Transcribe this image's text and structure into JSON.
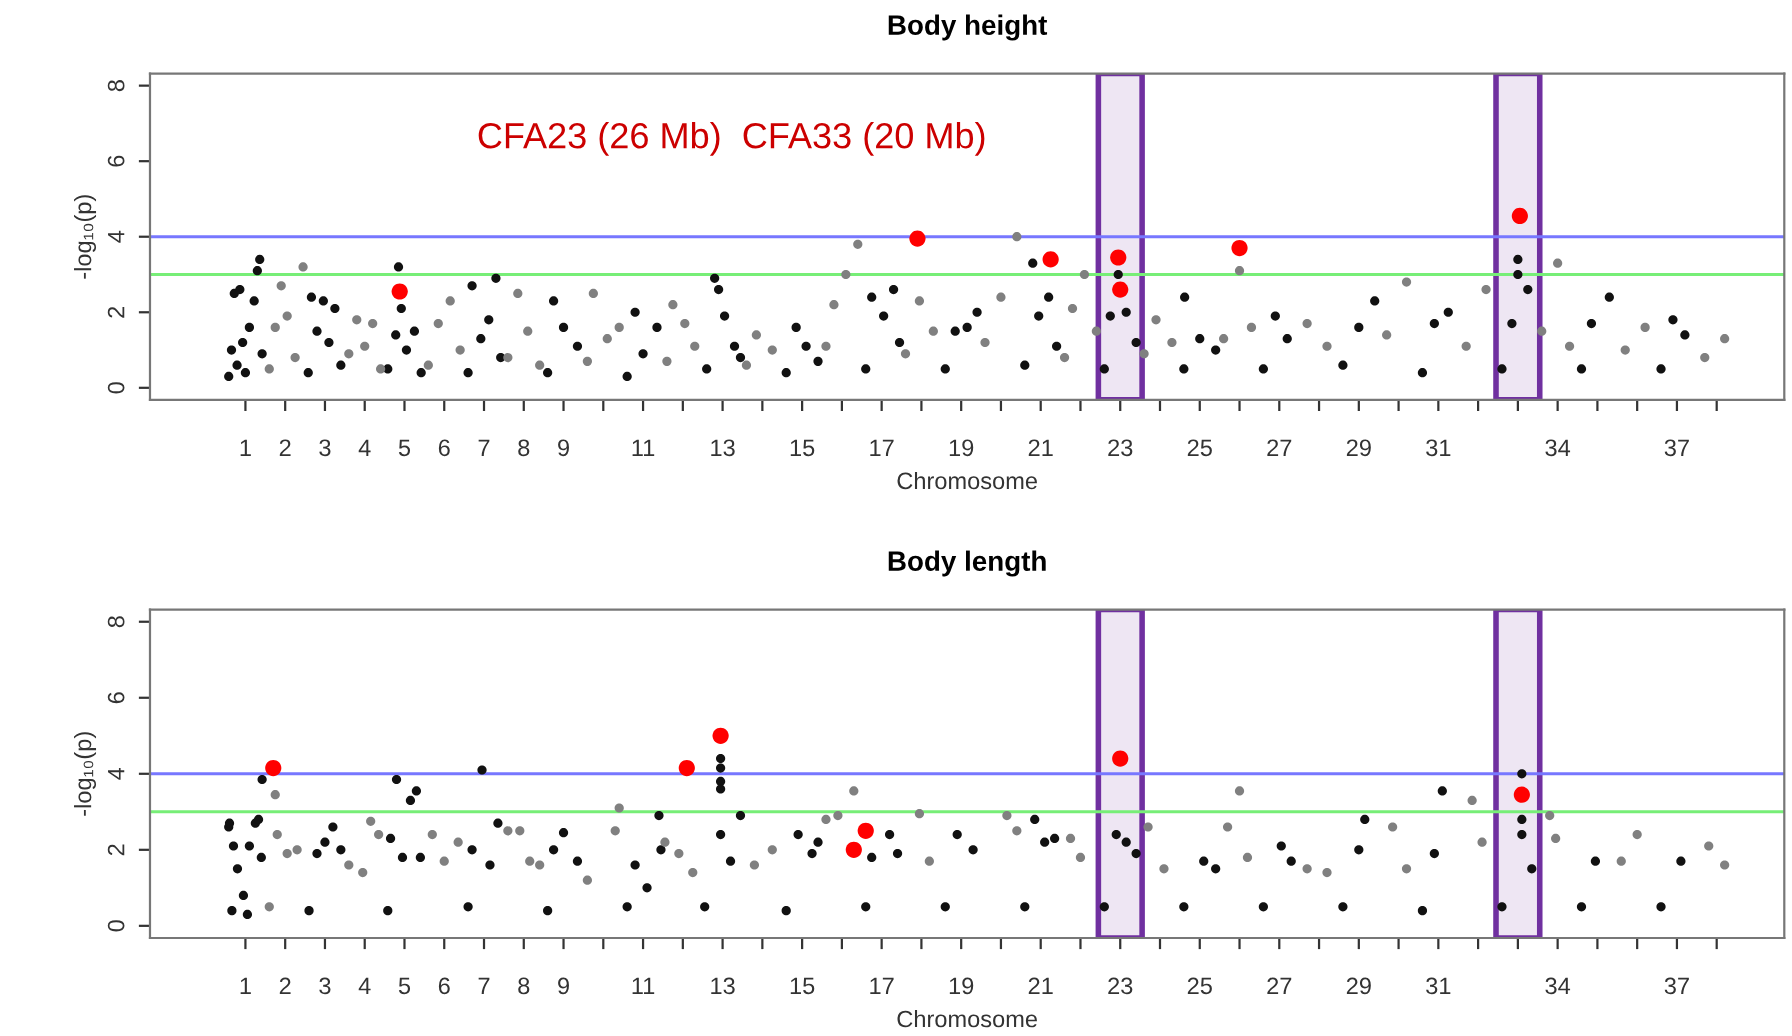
{
  "chart_data": [
    {
      "type": "scatter",
      "title": "Body height",
      "xlabel": "Chromosome",
      "ylabel": "-log₁₀(p)",
      "marker": "circle",
      "annotations": [
        "CFA23 (26 Mb)  CFA33 (20 Mb)"
      ],
      "xlim": [
        -1.4,
        39.7
      ],
      "ylim": [
        -0.32,
        8.32
      ],
      "yticks": [
        0,
        2,
        4,
        6,
        8
      ],
      "xticks": [
        1,
        2,
        3,
        4,
        5,
        6,
        7,
        8,
        9,
        {
          "value": 10,
          "label": null
        },
        11,
        {
          "value": 12,
          "label": null
        },
        13,
        {
          "value": 14,
          "label": null
        },
        15,
        {
          "value": 16,
          "label": null
        },
        17,
        {
          "value": 18,
          "label": null
        },
        19,
        {
          "value": 20,
          "label": null
        },
        21,
        {
          "value": 22,
          "label": null
        },
        23,
        {
          "value": 24,
          "label": null
        },
        25,
        {
          "value": 26,
          "label": null
        },
        27,
        {
          "value": 28,
          "label": null
        },
        29,
        {
          "value": 30,
          "label": null
        },
        31,
        {
          "value": 32,
          "label": null
        },
        {
          "value": 33,
          "label": null
        },
        34,
        {
          "value": 35,
          "label": null
        },
        {
          "value": 36,
          "label": null
        },
        37,
        {
          "value": 38,
          "label": null
        }
      ],
      "ref_lines": [
        {
          "axis": "y",
          "value": 4,
          "label": null,
          "color": "#7777ff"
        },
        {
          "axis": "y",
          "value": 3,
          "label": null,
          "color": "#77ee77"
        }
      ],
      "bands": [
        {
          "axis": "x",
          "from": 22.45,
          "to": 23.55,
          "label": null,
          "color": "#7030a0"
        },
        {
          "axis": "x",
          "from": 32.45,
          "to": 33.55,
          "label": null,
          "color": "#7030a0"
        }
      ],
      "series": [
        {
          "color": "#111111",
          "x": [
            0.58,
            0.65,
            0.72,
            0.79,
            0.86,
            0.93,
            1.0,
            1.1,
            1.22,
            1.3,
            1.36,
            1.42,
            2.58,
            2.66,
            2.8,
            2.96,
            3.1,
            3.25,
            3.4,
            4.58,
            4.78,
            4.85,
            4.92,
            5.05,
            5.25,
            5.42,
            6.6,
            6.7,
            6.92,
            7.12,
            7.3,
            7.42,
            8.6,
            8.75,
            9.0,
            9.35,
            10.6,
            10.8,
            11.0,
            11.35,
            12.6,
            12.8,
            12.9,
            13.05,
            13.3,
            13.45,
            14.6,
            14.85,
            15.1,
            15.4,
            16.6,
            16.75,
            17.05,
            17.3,
            17.45,
            18.6,
            18.85,
            19.15,
            19.4,
            20.6,
            20.8,
            20.95,
            21.2,
            21.4,
            22.6,
            22.75,
            22.95,
            23.15,
            23.4,
            24.6,
            24.62,
            25.0,
            25.4,
            26.6,
            26.9,
            27.2,
            28.6,
            29.0,
            29.4,
            30.6,
            30.9,
            31.25,
            32.6,
            32.85,
            33.0,
            33.0,
            33.25,
            34.6,
            34.85,
            35.3,
            36.6,
            36.9,
            37.2
          ],
          "values": [
            0.3,
            1.0,
            2.5,
            0.6,
            2.6,
            1.2,
            0.4,
            1.6,
            2.3,
            3.1,
            3.4,
            0.9,
            0.4,
            2.4,
            1.5,
            2.3,
            1.2,
            2.1,
            0.6,
            0.5,
            1.4,
            3.2,
            2.1,
            1.0,
            1.5,
            0.4,
            0.4,
            2.7,
            1.3,
            1.8,
            2.9,
            0.8,
            0.4,
            2.3,
            1.6,
            1.1,
            0.3,
            2.0,
            0.9,
            1.6,
            0.5,
            2.9,
            2.6,
            1.9,
            1.1,
            0.8,
            0.4,
            1.6,
            1.1,
            0.7,
            0.5,
            2.4,
            1.9,
            2.6,
            1.2,
            0.5,
            1.5,
            1.6,
            2.0,
            0.6,
            3.3,
            1.9,
            2.4,
            1.1,
            0.5,
            1.9,
            3.0,
            2.0,
            1.2,
            0.5,
            2.4,
            1.3,
            1.0,
            0.5,
            1.9,
            1.3,
            0.6,
            1.6,
            2.3,
            0.4,
            1.7,
            2.0,
            0.5,
            1.7,
            3.0,
            3.4,
            2.6,
            0.5,
            1.7,
            2.4,
            0.5,
            1.8,
            1.4
          ]
        },
        {
          "color": "#808080",
          "x": [
            1.6,
            1.75,
            1.9,
            2.05,
            2.25,
            2.45,
            3.6,
            3.8,
            4.0,
            4.2,
            4.4,
            5.6,
            5.85,
            6.15,
            6.4,
            7.6,
            7.85,
            8.1,
            8.4,
            9.6,
            9.75,
            10.1,
            10.4,
            11.6,
            11.75,
            12.05,
            12.3,
            13.6,
            13.85,
            14.25,
            15.6,
            15.8,
            16.1,
            16.4,
            17.6,
            17.95,
            18.3,
            19.6,
            20.0,
            20.4,
            21.6,
            21.8,
            22.1,
            22.4,
            23.6,
            23.9,
            24.3,
            25.6,
            26.0,
            26.3,
            27.7,
            28.2,
            29.7,
            30.2,
            31.7,
            32.2,
            33.6,
            34.0,
            34.3,
            35.7,
            36.2,
            37.7,
            38.2
          ],
          "values": [
            0.5,
            1.6,
            2.7,
            1.9,
            0.8,
            3.2,
            0.9,
            1.8,
            1.1,
            1.7,
            0.5,
            0.6,
            1.7,
            2.3,
            1.0,
            0.8,
            2.5,
            1.5,
            0.6,
            0.7,
            2.5,
            1.3,
            1.6,
            0.7,
            2.2,
            1.7,
            1.1,
            0.6,
            1.4,
            1.0,
            1.1,
            2.2,
            3.0,
            3.8,
            0.9,
            2.3,
            1.5,
            1.2,
            2.4,
            4.0,
            0.8,
            2.1,
            3.0,
            1.5,
            0.9,
            1.8,
            1.2,
            1.3,
            3.1,
            1.6,
            1.7,
            1.1,
            1.4,
            2.8,
            1.1,
            2.6,
            1.5,
            3.3,
            1.1,
            1.0,
            1.6,
            0.8,
            1.3
          ]
        },
        {
          "color": "#ff0000",
          "x": [
            4.88,
            17.9,
            21.25,
            22.95,
            23.0,
            26.0,
            33.05
          ],
          "values": [
            2.55,
            3.95,
            3.4,
            3.45,
            2.6,
            3.7,
            4.55
          ]
        }
      ]
    },
    {
      "type": "scatter",
      "title": "Body length",
      "xlabel": "Chromosome",
      "ylabel": "-log₁₀(p)",
      "marker": "circle",
      "xlim": [
        -1.4,
        39.7
      ],
      "ylim": [
        -0.32,
        8.32
      ],
      "yticks": [
        0,
        2,
        4,
        6,
        8
      ],
      "xticks": [
        1,
        2,
        3,
        4,
        5,
        6,
        7,
        8,
        9,
        {
          "value": 10,
          "label": null
        },
        11,
        {
          "value": 12,
          "label": null
        },
        13,
        {
          "value": 14,
          "label": null
        },
        15,
        {
          "value": 16,
          "label": null
        },
        17,
        {
          "value": 18,
          "label": null
        },
        19,
        {
          "value": 20,
          "label": null
        },
        21,
        {
          "value": 22,
          "label": null
        },
        23,
        {
          "value": 24,
          "label": null
        },
        25,
        {
          "value": 26,
          "label": null
        },
        27,
        {
          "value": 28,
          "label": null
        },
        29,
        {
          "value": 30,
          "label": null
        },
        31,
        {
          "value": 32,
          "label": null
        },
        {
          "value": 33,
          "label": null
        },
        34,
        {
          "value": 35,
          "label": null
        },
        {
          "value": 36,
          "label": null
        },
        37,
        {
          "value": 38,
          "label": null
        }
      ],
      "ref_lines": [
        {
          "axis": "y",
          "value": 4,
          "label": null,
          "color": "#7777ff"
        },
        {
          "axis": "y",
          "value": 3,
          "label": null,
          "color": "#77ee77"
        }
      ],
      "bands": [
        {
          "axis": "x",
          "from": 22.45,
          "to": 23.55,
          "label": null,
          "color": "#7030a0"
        },
        {
          "axis": "x",
          "from": 32.45,
          "to": 33.55,
          "label": null,
          "color": "#7030a0"
        }
      ],
      "series": [
        {
          "color": "#111111",
          "x": [
            0.58,
            0.6,
            0.66,
            0.7,
            0.8,
            0.95,
            1.05,
            1.1,
            1.25,
            1.33,
            1.4,
            1.42,
            2.6,
            2.8,
            3.0,
            3.2,
            3.4,
            4.58,
            4.65,
            4.8,
            4.95,
            5.15,
            5.3,
            5.4,
            6.6,
            6.7,
            6.95,
            7.15,
            7.35,
            8.6,
            8.75,
            9.0,
            9.35,
            10.6,
            10.8,
            11.1,
            11.4,
            11.45,
            12.55,
            12.95,
            12.95,
            12.95,
            12.95,
            12.95,
            13.2,
            13.45,
            14.6,
            14.9,
            15.25,
            15.4,
            16.6,
            16.75,
            17.2,
            17.4,
            18.6,
            18.9,
            19.3,
            20.6,
            20.85,
            21.1,
            21.35,
            22.6,
            22.9,
            23.15,
            23.4,
            24.6,
            25.1,
            25.4,
            26.6,
            27.05,
            27.3,
            28.6,
            29.0,
            29.15,
            30.6,
            30.9,
            31.1,
            32.6,
            33.1,
            33.1,
            33.1,
            33.35,
            34.6,
            34.95,
            36.6,
            37.1
          ],
          "values": [
            2.6,
            2.7,
            0.4,
            2.1,
            1.5,
            0.8,
            0.3,
            2.1,
            2.7,
            2.8,
            1.8,
            3.85,
            0.4,
            1.9,
            2.2,
            2.6,
            2.0,
            0.4,
            2.3,
            3.85,
            1.8,
            3.3,
            3.55,
            1.8,
            0.5,
            2.0,
            4.1,
            1.6,
            2.7,
            0.4,
            2.0,
            2.45,
            1.7,
            0.5,
            1.6,
            1.0,
            2.9,
            2.0,
            0.5,
            4.4,
            4.15,
            3.8,
            3.6,
            2.4,
            1.7,
            2.9,
            0.4,
            2.4,
            1.9,
            2.2,
            0.5,
            1.8,
            2.4,
            1.9,
            0.5,
            2.4,
            2.0,
            0.5,
            2.8,
            2.2,
            2.3,
            0.5,
            2.4,
            2.2,
            1.9,
            0.5,
            1.7,
            1.5,
            0.5,
            2.1,
            1.7,
            0.5,
            2.0,
            2.8,
            0.4,
            1.9,
            3.55,
            0.5,
            4.0,
            2.8,
            2.4,
            1.5,
            0.5,
            1.7,
            0.5,
            1.7
          ]
        },
        {
          "color": "#808080",
          "x": [
            1.75,
            1.6,
            1.8,
            2.05,
            2.3,
            3.6,
            3.95,
            4.15,
            4.35,
            5.7,
            6.0,
            6.35,
            7.6,
            7.9,
            8.15,
            8.4,
            9.6,
            10.3,
            10.4,
            11.55,
            11.9,
            12.25,
            13.8,
            14.25,
            15.6,
            15.9,
            16.3,
            17.95,
            18.2,
            20.15,
            20.4,
            21.75,
            22.0,
            23.7,
            24.1,
            25.7,
            26.0,
            26.2,
            27.7,
            28.2,
            29.85,
            30.2,
            31.85,
            32.1,
            33.8,
            33.95,
            35.6,
            36.0,
            37.8,
            38.2
          ],
          "values": [
            3.45,
            0.5,
            2.4,
            1.9,
            2.0,
            1.6,
            1.4,
            2.75,
            2.4,
            2.4,
            1.7,
            2.2,
            2.5,
            2.5,
            1.7,
            1.6,
            1.2,
            2.5,
            3.1,
            2.2,
            1.9,
            1.4,
            1.6,
            2.0,
            2.8,
            2.9,
            3.55,
            2.95,
            1.7,
            2.9,
            2.5,
            2.3,
            1.8,
            2.6,
            1.5,
            2.6,
            3.55,
            1.8,
            1.5,
            1.4,
            2.6,
            1.5,
            3.3,
            2.2,
            2.9,
            2.3,
            1.7,
            2.4,
            2.1,
            1.6
          ]
        },
        {
          "color": "#ff0000",
          "x": [
            1.7,
            12.1,
            12.95,
            16.3,
            16.6,
            23.0,
            33.1
          ],
          "values": [
            4.15,
            4.15,
            5.0,
            2.0,
            2.5,
            4.4,
            3.45
          ]
        }
      ]
    }
  ]
}
